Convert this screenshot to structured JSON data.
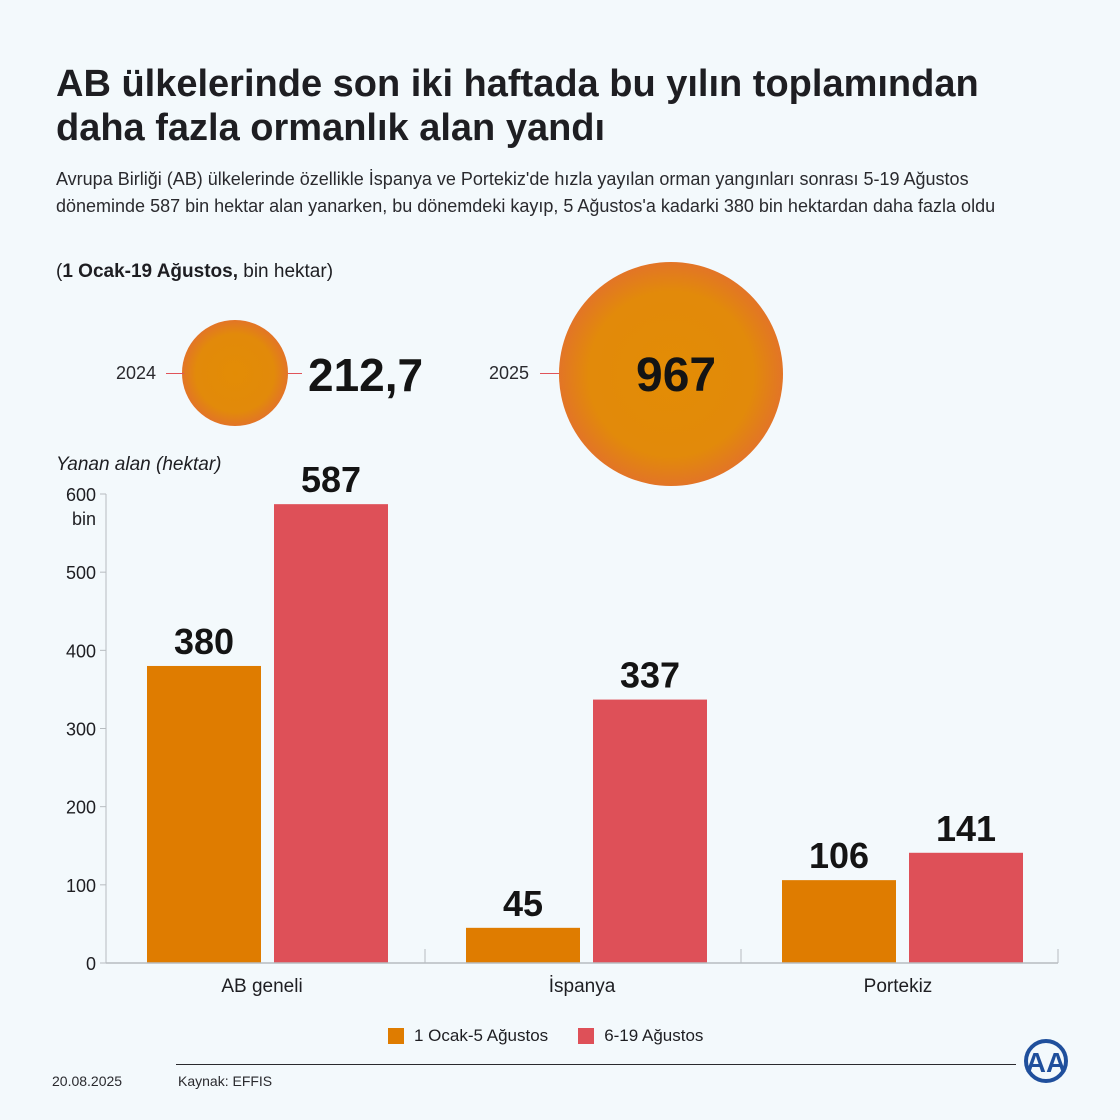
{
  "header": {
    "title": "AB ülkelerinde son iki haftada bu yılın toplamından daha fazla ormanlık alan yandı",
    "subtitle": "Avrupa Birliği (AB) ülkelerinde özellikle İspanya ve Portekiz'de hızla yayılan orman yangınları sonrası 5-19 Ağustos döneminde 587 bin hektar alan yanarken, bu dönemdeki kayıp, 5 Ağustos'a kadarki 380 bin hektardan daha fazla oldu",
    "unit_note_bold": "1 Ocak-19 Ağustos,",
    "unit_note_rest": " bin hektar)",
    "unit_note_open": "("
  },
  "bubbles": [
    {
      "year": "2024",
      "value": "212,7"
    },
    {
      "year": "2025",
      "value": "967"
    }
  ],
  "colors": {
    "series1": "#df7c00",
    "series2": "#de5058",
    "axis": "#b7bcc0",
    "text": "#1e1e22"
  },
  "chart_data": {
    "type": "bar",
    "title": "",
    "ylabel": "Yanan alan (hektar)",
    "y_unit_label": "bin",
    "xlabel": "",
    "ylim": [
      0,
      600
    ],
    "yticks": [
      0,
      100,
      200,
      300,
      400,
      500,
      600
    ],
    "categories": [
      "AB geneli",
      "İspanya",
      "Portekiz"
    ],
    "series": [
      {
        "name": "1 Ocak-5 Ağustos",
        "values": [
          380,
          45,
          106
        ]
      },
      {
        "name": "6-19 Ağustos",
        "values": [
          587,
          337,
          141
        ]
      }
    ],
    "legend_position": "bottom-center"
  },
  "footer": {
    "date": "20.08.2025",
    "source": "Kaynak: EFFIS",
    "logo_text": "AA"
  }
}
